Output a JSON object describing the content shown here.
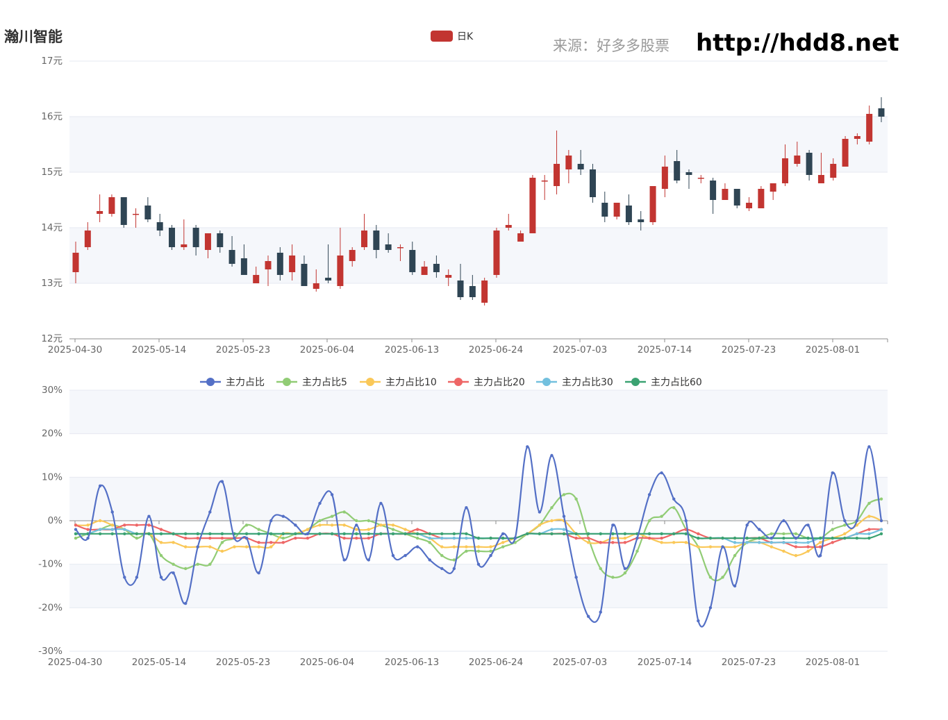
{
  "header": {
    "stock_name": "瀚川智能",
    "source_label": "来源：好多多股票",
    "site_url": "http://hdd8.net"
  },
  "colors": {
    "up": "#c23531",
    "down": "#2f4554",
    "band": "#f5f7fb",
    "grid": "#e6e9f0",
    "axis": "#8c8c8c"
  },
  "chart_data": [
    {
      "type": "candlestick",
      "legend": [
        {
          "name": "日K",
          "color": "#c23531"
        }
      ],
      "y_ticks": [
        "17元",
        "16元",
        "15元",
        "14元",
        "13元",
        "12元"
      ],
      "ylim": [
        12,
        17
      ],
      "x_ticks": [
        "2025-04-30",
        "2025-05-14",
        "2025-05-23",
        "2025-06-04",
        "2025-06-13",
        "2025-06-24",
        "2025-07-03",
        "2025-07-14",
        "2025-07-23",
        "2025-08-01"
      ],
      "candles": [
        [
          13.2,
          13.55,
          13.0,
          13.75
        ],
        [
          13.65,
          13.95,
          13.6,
          14.1
        ],
        [
          14.25,
          14.3,
          14.1,
          14.6
        ],
        [
          14.25,
          14.55,
          14.2,
          14.6
        ],
        [
          14.55,
          14.05,
          14.0,
          14.55
        ],
        [
          14.25,
          14.25,
          14.0,
          14.35
        ],
        [
          14.4,
          14.15,
          14.1,
          14.55
        ],
        [
          14.1,
          13.95,
          13.85,
          14.25
        ],
        [
          14.0,
          13.65,
          13.6,
          14.05
        ],
        [
          13.65,
          13.7,
          13.6,
          14.15
        ],
        [
          14.0,
          13.65,
          13.5,
          14.05
        ],
        [
          13.6,
          13.9,
          13.45,
          13.9
        ],
        [
          13.9,
          13.65,
          13.55,
          13.95
        ],
        [
          13.6,
          13.35,
          13.3,
          13.85
        ],
        [
          13.45,
          13.15,
          13.15,
          13.7
        ],
        [
          13.0,
          13.15,
          13.0,
          13.3
        ],
        [
          13.25,
          13.4,
          12.95,
          13.5
        ],
        [
          13.55,
          13.15,
          13.05,
          13.65
        ],
        [
          13.2,
          13.5,
          13.05,
          13.7
        ],
        [
          13.35,
          12.95,
          12.95,
          13.5
        ],
        [
          12.9,
          13.0,
          12.85,
          13.25
        ],
        [
          13.1,
          13.05,
          13.0,
          13.7
        ],
        [
          12.95,
          13.5,
          12.9,
          14.0
        ],
        [
          13.4,
          13.6,
          13.3,
          13.65
        ],
        [
          13.65,
          13.95,
          13.6,
          14.25
        ],
        [
          13.95,
          13.6,
          13.45,
          14.05
        ],
        [
          13.7,
          13.6,
          13.55,
          13.9
        ],
        [
          13.65,
          13.65,
          13.4,
          13.7
        ],
        [
          13.6,
          13.2,
          13.15,
          13.75
        ],
        [
          13.15,
          13.3,
          13.15,
          13.4
        ],
        [
          13.35,
          13.2,
          13.1,
          13.5
        ],
        [
          13.1,
          13.15,
          12.95,
          13.25
        ],
        [
          13.05,
          12.75,
          12.7,
          13.35
        ],
        [
          12.95,
          12.75,
          12.7,
          13.15
        ],
        [
          12.65,
          13.05,
          12.6,
          13.1
        ],
        [
          13.15,
          13.95,
          13.1,
          14.0
        ],
        [
          14.0,
          14.05,
          13.95,
          14.25
        ],
        [
          13.75,
          13.9,
          13.75,
          13.95
        ],
        [
          13.9,
          14.9,
          13.9,
          14.95
        ],
        [
          14.85,
          14.85,
          14.5,
          14.95
        ],
        [
          14.75,
          15.15,
          14.6,
          15.75
        ],
        [
          15.05,
          15.3,
          14.8,
          15.4
        ],
        [
          15.15,
          15.05,
          14.95,
          15.4
        ],
        [
          15.05,
          14.55,
          14.45,
          15.15
        ],
        [
          14.45,
          14.2,
          14.1,
          14.65
        ],
        [
          14.2,
          14.45,
          14.15,
          14.45
        ],
        [
          14.4,
          14.1,
          14.05,
          14.6
        ],
        [
          14.15,
          14.1,
          13.95,
          14.3
        ],
        [
          14.1,
          14.75,
          14.05,
          14.75
        ],
        [
          14.7,
          15.1,
          14.55,
          15.3
        ],
        [
          15.2,
          14.85,
          14.8,
          15.4
        ],
        [
          15.0,
          14.95,
          14.7,
          15.05
        ],
        [
          14.9,
          14.9,
          14.8,
          14.95
        ],
        [
          14.85,
          14.5,
          14.25,
          14.9
        ],
        [
          14.5,
          14.7,
          14.5,
          14.8
        ],
        [
          14.7,
          14.4,
          14.35,
          14.7
        ],
        [
          14.35,
          14.45,
          14.3,
          14.55
        ],
        [
          14.35,
          14.7,
          14.35,
          14.75
        ],
        [
          14.65,
          14.8,
          14.5,
          14.8
        ],
        [
          14.8,
          15.25,
          14.75,
          15.5
        ],
        [
          15.15,
          15.3,
          15.1,
          15.55
        ],
        [
          15.35,
          14.95,
          14.85,
          15.4
        ],
        [
          14.8,
          14.95,
          14.8,
          15.35
        ],
        [
          14.9,
          15.15,
          14.85,
          15.25
        ],
        [
          15.1,
          15.6,
          15.1,
          15.65
        ],
        [
          15.6,
          15.65,
          15.5,
          15.7
        ],
        [
          15.55,
          16.05,
          15.5,
          16.2
        ],
        [
          16.15,
          16.0,
          15.9,
          16.35
        ]
      ]
    },
    {
      "type": "line",
      "legend": [
        "主力占比",
        "主力占比5",
        "主力占比10",
        "主力占比20",
        "主力占比30",
        "主力占比60"
      ],
      "y_ticks": [
        "30%",
        "20%",
        "10%",
        "0%",
        "-10%",
        "-20%",
        "-30%"
      ],
      "ylim": [
        -30,
        30
      ],
      "x_ticks": [
        "2025-04-30",
        "2025-05-14",
        "2025-05-23",
        "2025-06-04",
        "2025-06-13",
        "2025-06-24",
        "2025-07-03",
        "2025-07-14",
        "2025-07-23",
        "2025-08-01"
      ],
      "series": [
        {
          "name": "主力占比",
          "color": "#5470c6",
          "values": [
            -2,
            -4,
            8,
            2,
            -13,
            -13,
            1,
            -13,
            -12,
            -19,
            -6,
            2,
            9,
            -4,
            -4,
            -12,
            0,
            1,
            -1,
            -3,
            4,
            6,
            -9,
            -1,
            -9,
            4,
            -8,
            -8,
            -6,
            -9,
            -11,
            -11,
            3,
            -10,
            -8,
            -3,
            -4,
            17,
            2,
            15,
            1,
            -13,
            -22,
            -21,
            -1,
            -11,
            -4,
            6,
            11,
            5,
            0,
            -23,
            -20,
            -6,
            -15,
            -1,
            -2,
            -4,
            0,
            -4,
            -1,
            -8,
            11,
            0,
            0,
            17,
            0
          ]
        },
        {
          "name": "主力占比5",
          "color": "#91cc75",
          "values": [
            -4,
            -3,
            -2,
            -1,
            -2,
            -4,
            -3,
            -8,
            -10,
            -11,
            -10,
            -10,
            -5,
            -4,
            -1,
            -2,
            -3,
            -4,
            -3,
            -2,
            0,
            1,
            2,
            0,
            0,
            -1,
            -2,
            -3,
            -4,
            -5,
            -8,
            -9,
            -7,
            -7,
            -7,
            -6,
            -5,
            -3,
            -1,
            3,
            6,
            5,
            -4,
            -11,
            -13,
            -12,
            -7,
            0,
            1,
            3,
            -2,
            -6,
            -13,
            -13,
            -8,
            -5,
            -4,
            -3,
            -3,
            -3,
            -4,
            -4,
            -2,
            -1,
            0,
            4,
            5
          ]
        },
        {
          "name": "主力占比10",
          "color": "#fac858",
          "values": [
            -1,
            -1,
            0,
            -1,
            -2,
            -3,
            -3,
            -5,
            -5,
            -6,
            -6,
            -6,
            -7,
            -6,
            -6,
            -6,
            -6,
            -3,
            -3,
            -2,
            -1,
            -1,
            -1,
            -2,
            -2,
            -1,
            -1,
            -2,
            -3,
            -4,
            -6,
            -6,
            -6,
            -6,
            -6,
            -5,
            -4,
            -3,
            -1,
            0,
            0,
            -3,
            -5,
            -5,
            -4,
            -4,
            -3,
            -4,
            -5,
            -5,
            -5,
            -6,
            -6,
            -6,
            -6,
            -5,
            -5,
            -6,
            -7,
            -8,
            -7,
            -5,
            -4,
            -3,
            -1,
            1,
            0
          ]
        },
        {
          "name": "主力占比20",
          "color": "#ee6666",
          "values": [
            -1,
            -2,
            -2,
            -2,
            -1,
            -1,
            -1,
            -2,
            -3,
            -4,
            -4,
            -4,
            -4,
            -4,
            -4,
            -5,
            -5,
            -5,
            -4,
            -4,
            -3,
            -3,
            -4,
            -4,
            -4,
            -3,
            -3,
            -3,
            -2,
            -3,
            -4,
            -4,
            -4,
            -4,
            -4,
            -4,
            -4,
            -3,
            -3,
            -3,
            -3,
            -4,
            -4,
            -5,
            -5,
            -5,
            -4,
            -4,
            -4,
            -3,
            -2,
            -3,
            -4,
            -4,
            -4,
            -4,
            -4,
            -5,
            -5,
            -6,
            -6,
            -6,
            -5,
            -4,
            -3,
            -2,
            -2
          ]
        },
        {
          "name": "主力占比30",
          "color": "#73c0de",
          "values": [
            -3,
            -3,
            -2,
            -2,
            -2,
            -3,
            -3,
            -3,
            -3,
            -3,
            -3,
            -3,
            -3,
            -3,
            -3,
            -3,
            -3,
            -3,
            -3,
            -3,
            -3,
            -3,
            -3,
            -3,
            -3,
            -3,
            -3,
            -3,
            -3,
            -4,
            -4,
            -4,
            -4,
            -4,
            -4,
            -4,
            -4,
            -3,
            -3,
            -2,
            -2,
            -3,
            -3,
            -3,
            -3,
            -3,
            -3,
            -3,
            -3,
            -3,
            -3,
            -4,
            -4,
            -4,
            -5,
            -5,
            -5,
            -5,
            -5,
            -5,
            -5,
            -4,
            -4,
            -4,
            -3,
            -3,
            -2
          ]
        },
        {
          "name": "主力占比60",
          "color": "#3ba272",
          "values": [
            -3,
            -3,
            -3,
            -3,
            -3,
            -3,
            -3,
            -3,
            -3,
            -3,
            -3,
            -3,
            -3,
            -3,
            -3,
            -3,
            -3,
            -3,
            -3,
            -3,
            -3,
            -3,
            -3,
            -3,
            -3,
            -3,
            -3,
            -3,
            -3,
            -3,
            -3,
            -3,
            -3,
            -4,
            -4,
            -4,
            -4,
            -3,
            -3,
            -3,
            -3,
            -3,
            -3,
            -3,
            -3,
            -3,
            -3,
            -3,
            -3,
            -3,
            -3,
            -4,
            -4,
            -4,
            -4,
            -4,
            -4,
            -4,
            -4,
            -4,
            -4,
            -4,
            -4,
            -4,
            -4,
            -4,
            -3
          ]
        }
      ]
    }
  ]
}
